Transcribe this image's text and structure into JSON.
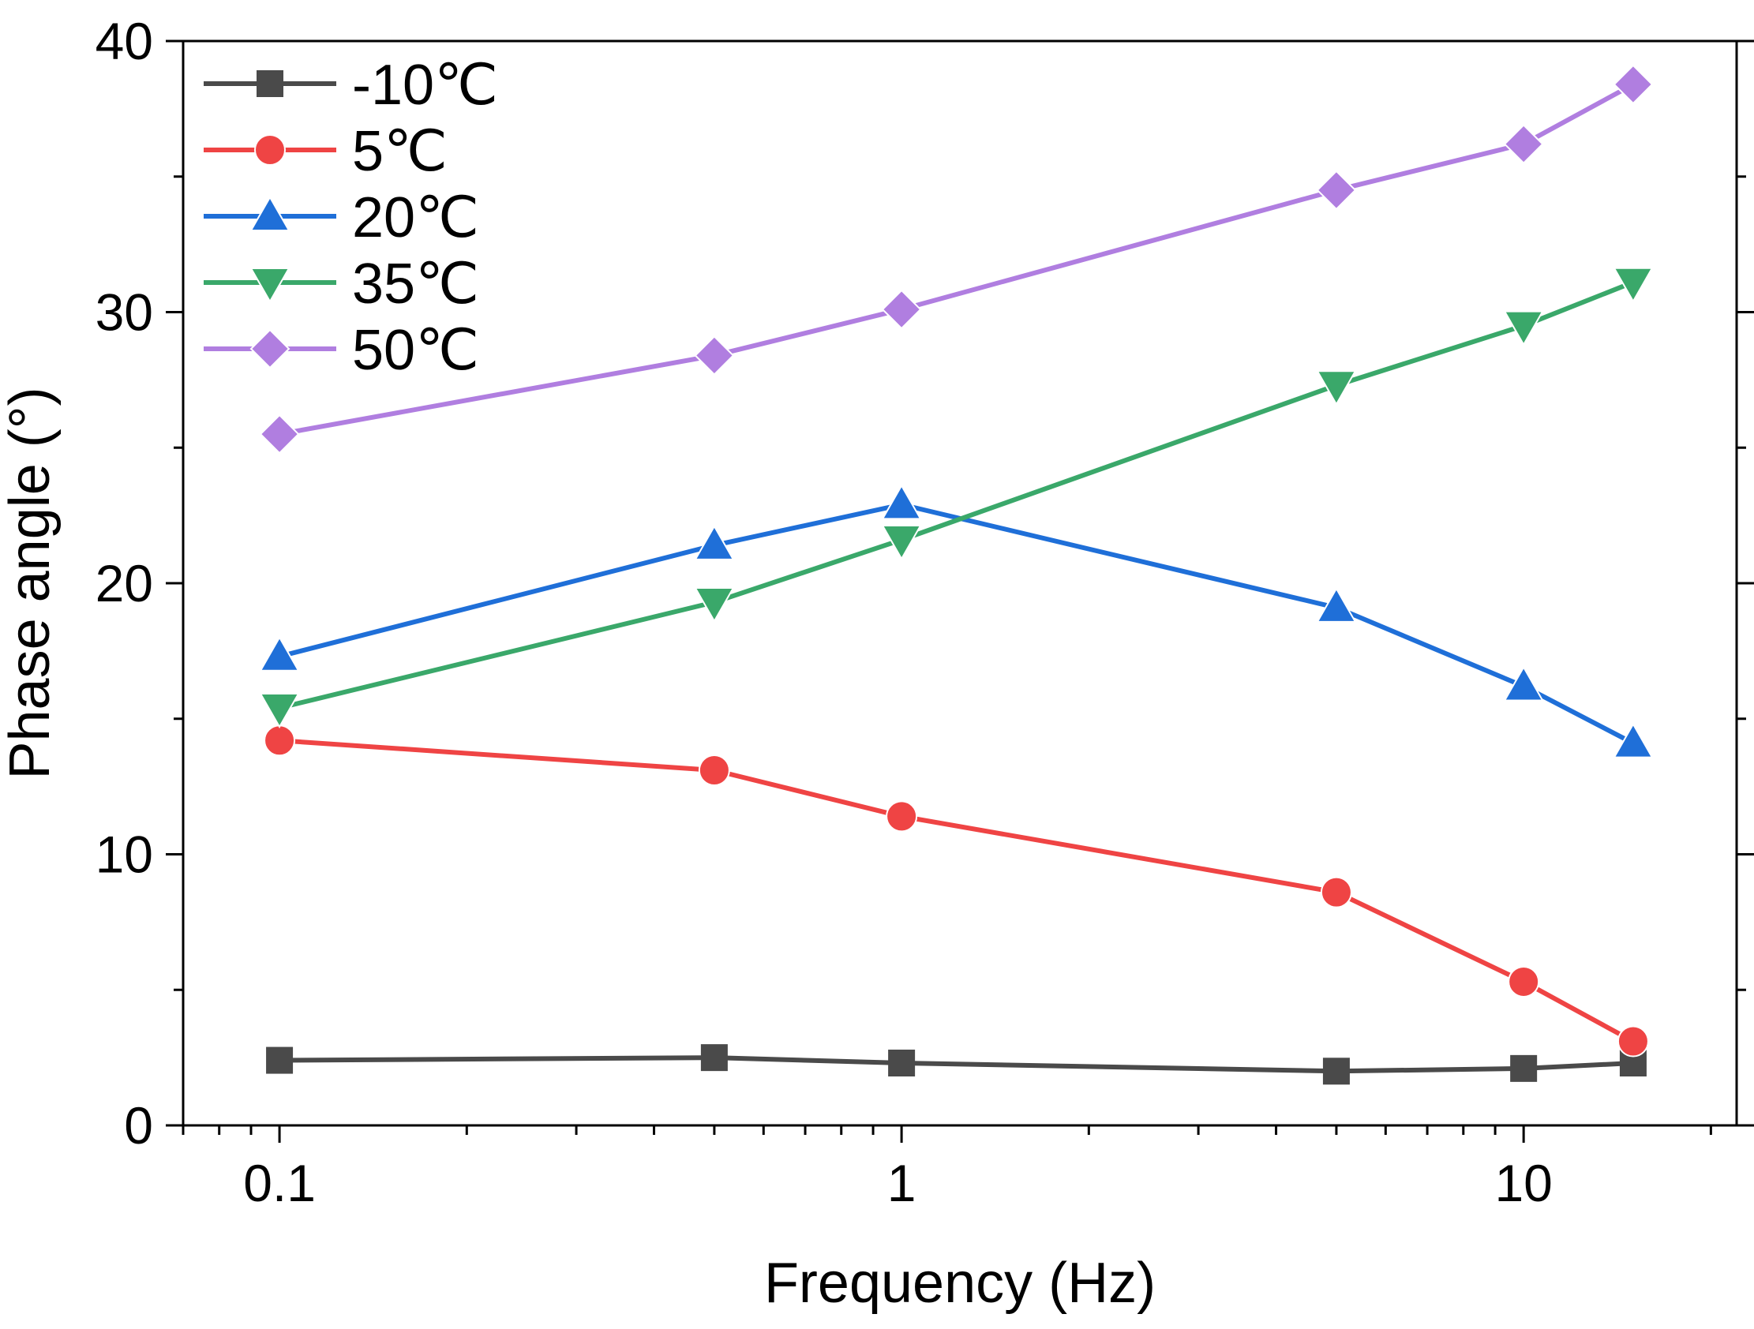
{
  "chart_data": {
    "type": "line",
    "title": "",
    "xlabel": "Frequency (Hz)",
    "ylabel": "Phase angle (°)",
    "xscale": "log",
    "xlim": [
      0.07,
      22
    ],
    "ylim": [
      0,
      40
    ],
    "x": [
      0.1,
      0.5,
      1,
      5,
      10,
      15
    ],
    "x_ticks": [
      {
        "value": 0.1,
        "label": "0.1"
      },
      {
        "value": 1,
        "label": "1"
      },
      {
        "value": 10,
        "label": "10"
      }
    ],
    "y_ticks": [
      {
        "value": 0,
        "label": "0"
      },
      {
        "value": 10,
        "label": "10"
      },
      {
        "value": 20,
        "label": "20"
      },
      {
        "value": 30,
        "label": "30"
      },
      {
        "value": 40,
        "label": "40"
      }
    ],
    "legend_position": "top-left",
    "grid": false,
    "series": [
      {
        "name": "-10℃",
        "marker": "square",
        "color": "#4a4a4a",
        "values": [
          2.4,
          2.5,
          2.3,
          2.0,
          2.1,
          2.3
        ]
      },
      {
        "name": "5℃",
        "marker": "circle",
        "color": "#ef4444",
        "values": [
          14.2,
          13.1,
          11.4,
          8.6,
          5.3,
          3.1
        ]
      },
      {
        "name": "20℃",
        "marker": "triangle-up",
        "color": "#1f6fd8",
        "values": [
          17.3,
          21.4,
          22.9,
          19.1,
          16.2,
          14.1
        ]
      },
      {
        "name": "35℃",
        "marker": "triangle-down",
        "color": "#3aa86a",
        "values": [
          15.4,
          19.3,
          21.6,
          27.3,
          29.5,
          31.1
        ]
      },
      {
        "name": "50℃",
        "marker": "diamond",
        "color": "#b07ee0",
        "values": [
          25.5,
          28.4,
          30.1,
          34.5,
          36.2,
          38.4
        ]
      }
    ]
  }
}
